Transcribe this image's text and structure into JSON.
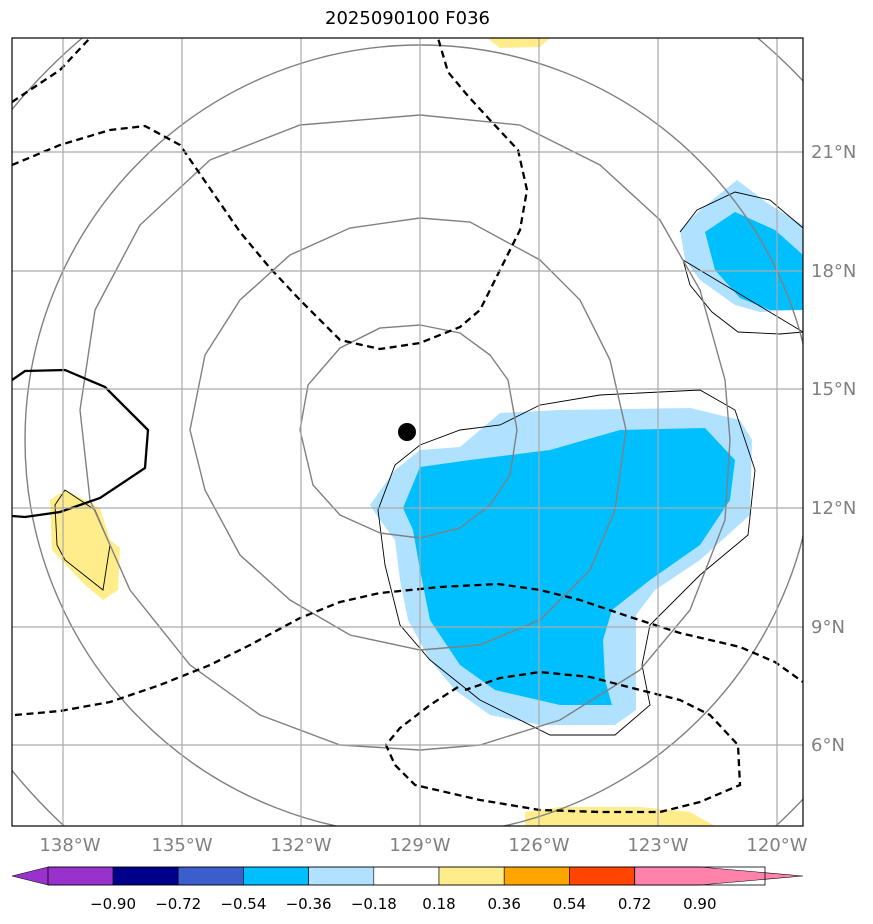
{
  "title": "2025090100 F036",
  "map": {
    "lon_ticks": [
      "138°W",
      "135°W",
      "132°W",
      "129°W",
      "126°W",
      "123°W",
      "120°W"
    ],
    "lat_ticks": [
      "21°N",
      "18°N",
      "15°N",
      "12°N",
      "9°N",
      "6°N"
    ],
    "extent": {
      "lon_min": -139.3,
      "lon_max": -119.3,
      "lat_min": 4.0,
      "lat_max": 24.0
    },
    "center_marker": {
      "lon": -129.3,
      "lat": 13.9,
      "color": "#000000"
    }
  },
  "colorbar": {
    "levels": [
      "−0.90",
      "−0.72",
      "−0.54",
      "−0.36",
      "−0.18",
      "0.18",
      "0.36",
      "0.54",
      "0.72",
      "0.90"
    ],
    "colors": [
      "#9932cc",
      "#00008b",
      "#3a5fcd",
      "#00bfff",
      "#b0e2ff",
      "#ffffff",
      "#ffec8b",
      "#ffa500",
      "#ff4500",
      "#b22222",
      "#ff82ab"
    ]
  }
}
